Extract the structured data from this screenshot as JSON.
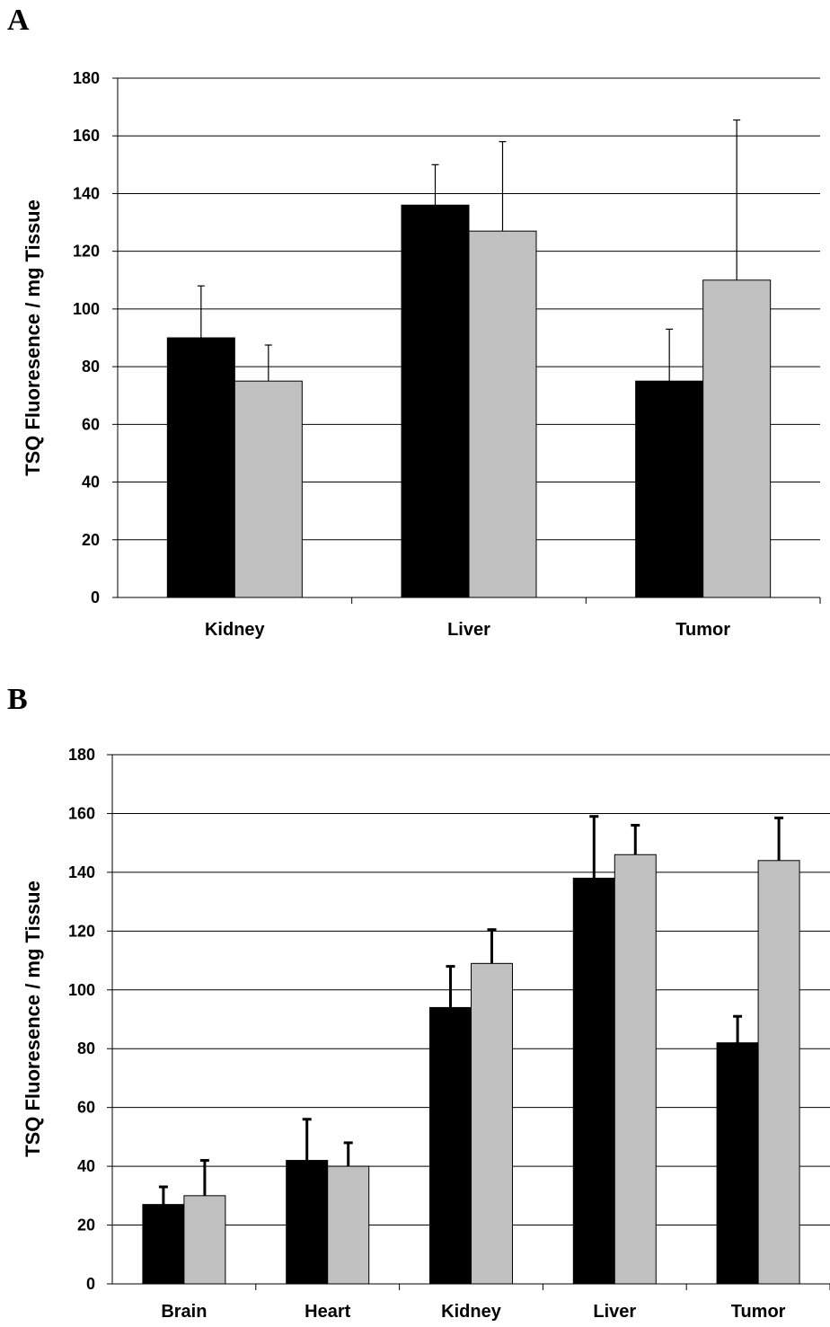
{
  "colors": {
    "series_1": "#000000",
    "series_2": "#c0c0c0",
    "axis": "#000000",
    "grid": "#000000"
  },
  "chart_data": [
    {
      "panel_label": "A",
      "type": "bar",
      "categories": [
        "Kidney",
        "Liver",
        "Tumor"
      ],
      "series": [
        {
          "color": "#000000",
          "values": [
            90,
            136,
            75
          ],
          "errors": [
            18,
            14,
            18
          ]
        },
        {
          "color": "#c0c0c0",
          "values": [
            75,
            127,
            110
          ],
          "errors": [
            12.5,
            31,
            55.5
          ]
        }
      ],
      "ylabel": "TSQ Fluoresence / mg Tissue",
      "ylim": [
        0,
        180
      ],
      "yticks": [
        0,
        20,
        40,
        60,
        80,
        100,
        120,
        140,
        160,
        180
      ],
      "grid": true,
      "error_style": "thin"
    },
    {
      "panel_label": "B",
      "type": "bar",
      "categories": [
        "Brain",
        "Heart",
        "Kidney",
        "Liver",
        "Tumor"
      ],
      "series": [
        {
          "color": "#000000",
          "values": [
            27,
            42,
            94,
            138,
            82
          ],
          "errors": [
            6,
            14,
            14,
            21,
            9
          ]
        },
        {
          "color": "#c0c0c0",
          "values": [
            30,
            40,
            109,
            146,
            144
          ],
          "errors": [
            12,
            8,
            11.5,
            10,
            14.5
          ]
        }
      ],
      "ylabel": "TSQ Fluoresence / mg Tissue",
      "ylim": [
        0,
        180
      ],
      "yticks": [
        0,
        20,
        40,
        60,
        80,
        100,
        120,
        140,
        160,
        180
      ],
      "grid": true,
      "error_style": "thick"
    }
  ]
}
